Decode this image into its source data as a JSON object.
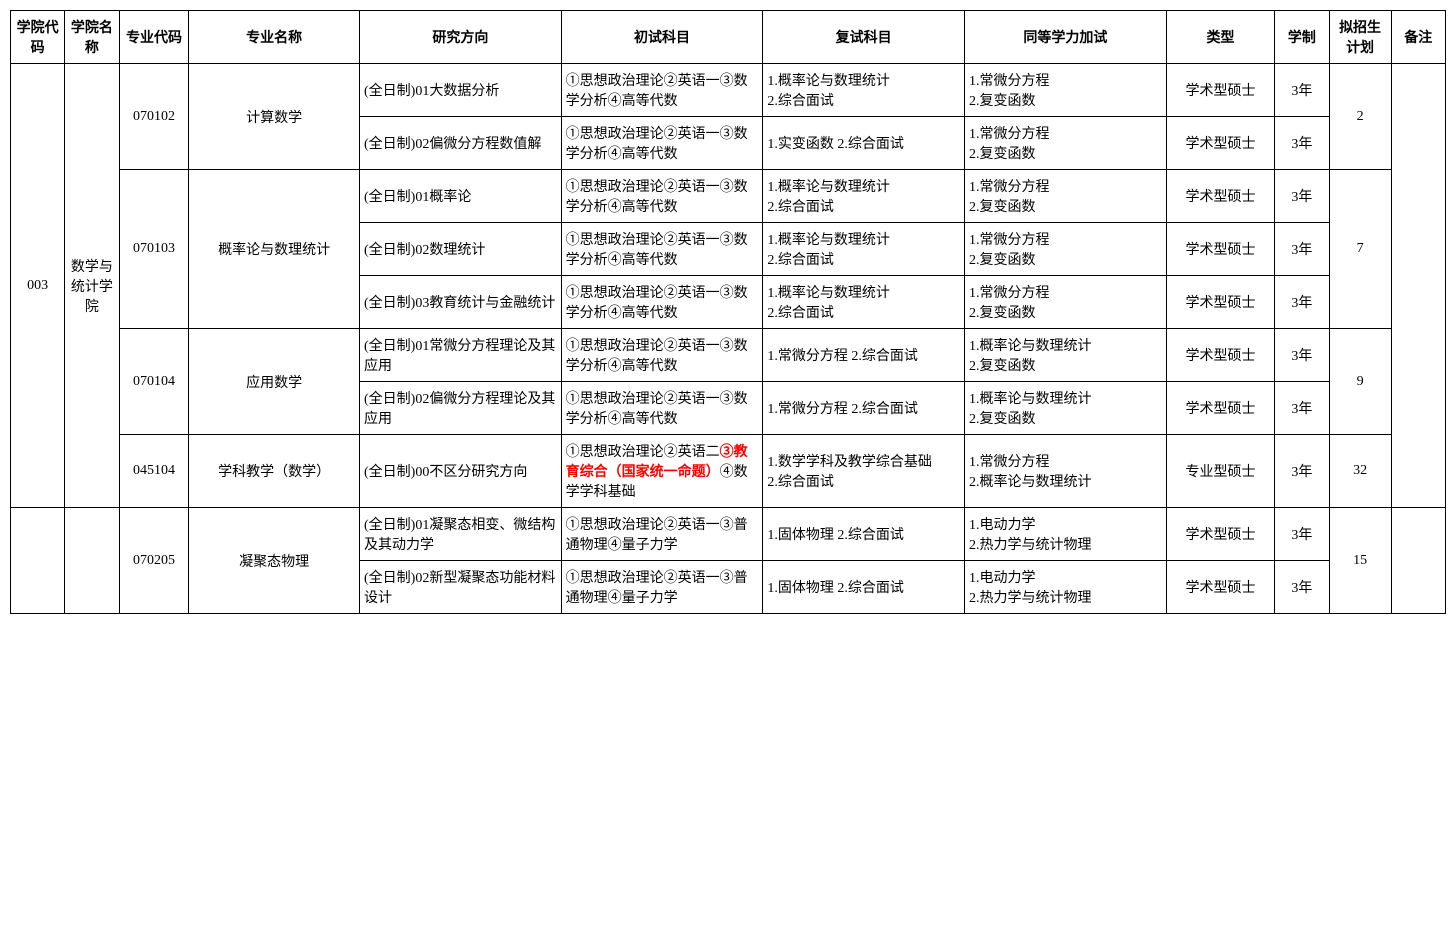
{
  "columns": {
    "col1": "学院代码",
    "col2": "学院名称",
    "col3": "专业代码",
    "col4": "专业名称",
    "col5": "研究方向",
    "col6": "初试科目",
    "col7": "复试科目",
    "col8": "同等学力加试",
    "col9": "类型",
    "col10": "学制",
    "col11": "拟招生计划",
    "col12": "备注"
  },
  "widths": {
    "w1": "3.5%",
    "w2": "3.5%",
    "w3": "4.5%",
    "w4": "11%",
    "w5": "13%",
    "w6": "13%",
    "w7": "13%",
    "w8": "13%",
    "w9": "7%",
    "w10": "3.5%",
    "w11": "4%",
    "w12": "3.5%"
  },
  "college": {
    "code": "003",
    "name": "数学与统计学院"
  },
  "majors": [
    {
      "code": "070102",
      "name": "计算数学",
      "quota": "2",
      "dirs": [
        {
          "direction": "(全日制)01大数据分析",
          "preliminary": "①思想政治理论②英语一③数学分析④高等代数",
          "reexam": "1.概率论与数理统计\n2.综合面试",
          "extra": "1.常微分方程\n2.复变函数",
          "type": "学术型硕士",
          "duration": "3年"
        },
        {
          "direction": "(全日制)02偏微分方程数值解",
          "preliminary": "①思想政治理论②英语一③数学分析④高等代数",
          "reexam": "1.实变函数 2.综合面试",
          "extra": "1.常微分方程\n2.复变函数",
          "type": "学术型硕士",
          "duration": "3年"
        }
      ]
    },
    {
      "code": "070103",
      "name": "概率论与数理统计",
      "quota": "7",
      "dirs": [
        {
          "direction": "(全日制)01概率论",
          "preliminary": "①思想政治理论②英语一③数学分析④高等代数",
          "reexam": "1.概率论与数理统计\n2.综合面试",
          "extra": "1.常微分方程\n2.复变函数",
          "type": "学术型硕士",
          "duration": "3年"
        },
        {
          "direction": "(全日制)02数理统计",
          "preliminary": "①思想政治理论②英语一③数学分析④高等代数",
          "reexam": "1.概率论与数理统计\n2.综合面试",
          "extra": "1.常微分方程\n2.复变函数",
          "type": "学术型硕士",
          "duration": "3年"
        },
        {
          "direction": "(全日制)03教育统计与金融统计",
          "preliminary": "①思想政治理论②英语一③数学分析④高等代数",
          "reexam": "1.概率论与数理统计\n2.综合面试",
          "extra": "1.常微分方程\n2.复变函数",
          "type": "学术型硕士",
          "duration": "3年"
        }
      ]
    },
    {
      "code": "070104",
      "name": "应用数学",
      "quota": "9",
      "dirs": [
        {
          "direction": "(全日制)01常微分方程理论及其应用",
          "preliminary": "①思想政治理论②英语一③数学分析④高等代数",
          "reexam": "1.常微分方程 2.综合面试",
          "extra": "1.概率论与数理统计\n2.复变函数",
          "type": "学术型硕士",
          "duration": "3年"
        },
        {
          "direction": "(全日制)02偏微分方程理论及其应用",
          "preliminary": "①思想政治理论②英语一③数学分析④高等代数",
          "reexam": "1.常微分方程 2.综合面试",
          "extra": "1.概率论与数理统计\n2.复变函数",
          "type": "学术型硕士",
          "duration": "3年"
        }
      ]
    },
    {
      "code": "045104",
      "name": "学科教学（数学）",
      "quota": "32",
      "dirs": [
        {
          "direction": "(全日制)00不区分研究方向",
          "preliminary_a": "①思想政治理论②英语二",
          "preliminary_red": "③教育综合（国家统一命题）",
          "preliminary_b": "④数学学科基础",
          "reexam": "1.数学学科及教学综合基础\n2.综合面试",
          "extra": "1.常微分方程\n2.概率论与数理统计",
          "type": "专业型硕士",
          "duration": "3年"
        }
      ]
    }
  ],
  "physics": {
    "code": "070205",
    "name": "凝聚态物理",
    "quota": "15",
    "dirs": [
      {
        "direction": "(全日制)01凝聚态相变、微结构及其动力学",
        "preliminary": "①思想政治理论②英语一③普通物理④量子力学",
        "reexam": "1.固体物理 2.综合面试",
        "extra": "1.电动力学\n2.热力学与统计物理",
        "type": "学术型硕士",
        "duration": "3年"
      },
      {
        "direction": "(全日制)02新型凝聚态功能材料设计",
        "preliminary": "①思想政治理论②英语一③普通物理④量子力学",
        "reexam": "1.固体物理 2.综合面试",
        "extra": "1.电动力学\n2.热力学与统计物理",
        "type": "学术型硕士",
        "duration": "3年"
      }
    ]
  }
}
